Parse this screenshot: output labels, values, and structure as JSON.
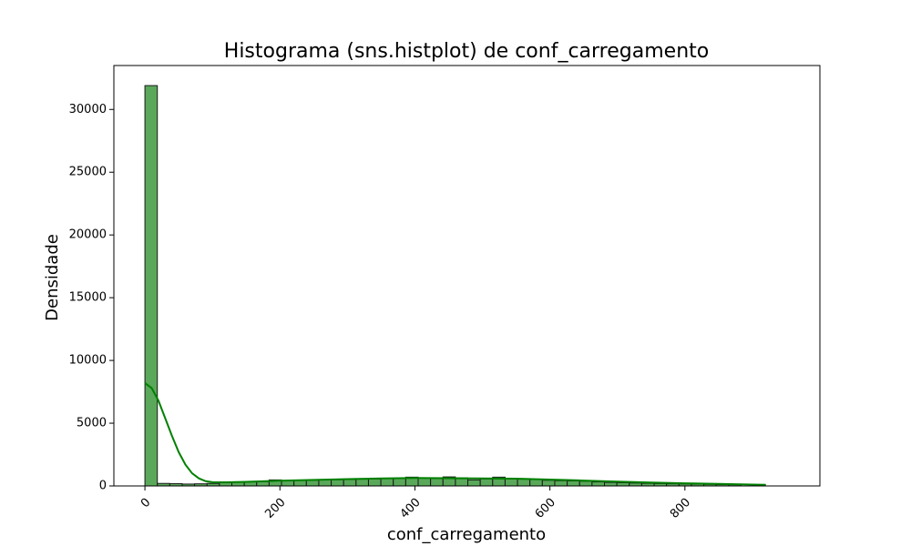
{
  "chart_data": {
    "type": "bar",
    "title": "Histograma (sns.histplot) de conf_carregamento",
    "xlabel": "conf_carregamento",
    "ylabel": "Densidade",
    "xlim": [
      -46,
      1000
    ],
    "ylim": [
      0,
      33500
    ],
    "x_ticks": [
      0,
      200,
      400,
      600,
      800
    ],
    "y_ticks": [
      0,
      5000,
      10000,
      15000,
      20000,
      25000,
      30000
    ],
    "x_tick_labels": [
      "0",
      "200",
      "400",
      "600",
      "800"
    ],
    "y_tick_labels": [
      "0",
      "5000",
      "10000",
      "15000",
      "20000",
      "25000",
      "30000"
    ],
    "x_tick_rotation": 45,
    "grid": false,
    "legend": false,
    "bar_color": "#5aa85a",
    "bar_edge_color": "#1a1a1a",
    "kde_color": "#008000",
    "bins": {
      "start": 0,
      "width": 18.4,
      "counts": [
        31900,
        200,
        180,
        150,
        170,
        200,
        260,
        300,
        330,
        350,
        480,
        420,
        450,
        460,
        480,
        500,
        520,
        540,
        560,
        580,
        600,
        700,
        620,
        600,
        720,
        640,
        480,
        560,
        700,
        580,
        540,
        520,
        450,
        420,
        400,
        380,
        320,
        280,
        260,
        230,
        210,
        190,
        170,
        160,
        150,
        130,
        110,
        100
      ]
    },
    "kde": {
      "x": [
        0,
        10,
        20,
        30,
        40,
        50,
        60,
        70,
        80,
        90,
        100,
        120,
        150,
        200,
        250,
        300,
        350,
        400,
        450,
        500,
        550,
        600,
        650,
        700,
        750,
        800,
        850,
        900,
        920
      ],
      "y": [
        8200,
        7800,
        6800,
        5400,
        4000,
        2700,
        1700,
        1000,
        600,
        380,
        300,
        290,
        330,
        420,
        480,
        540,
        600,
        630,
        620,
        600,
        580,
        510,
        430,
        340,
        270,
        210,
        160,
        110,
        90
      ]
    }
  }
}
